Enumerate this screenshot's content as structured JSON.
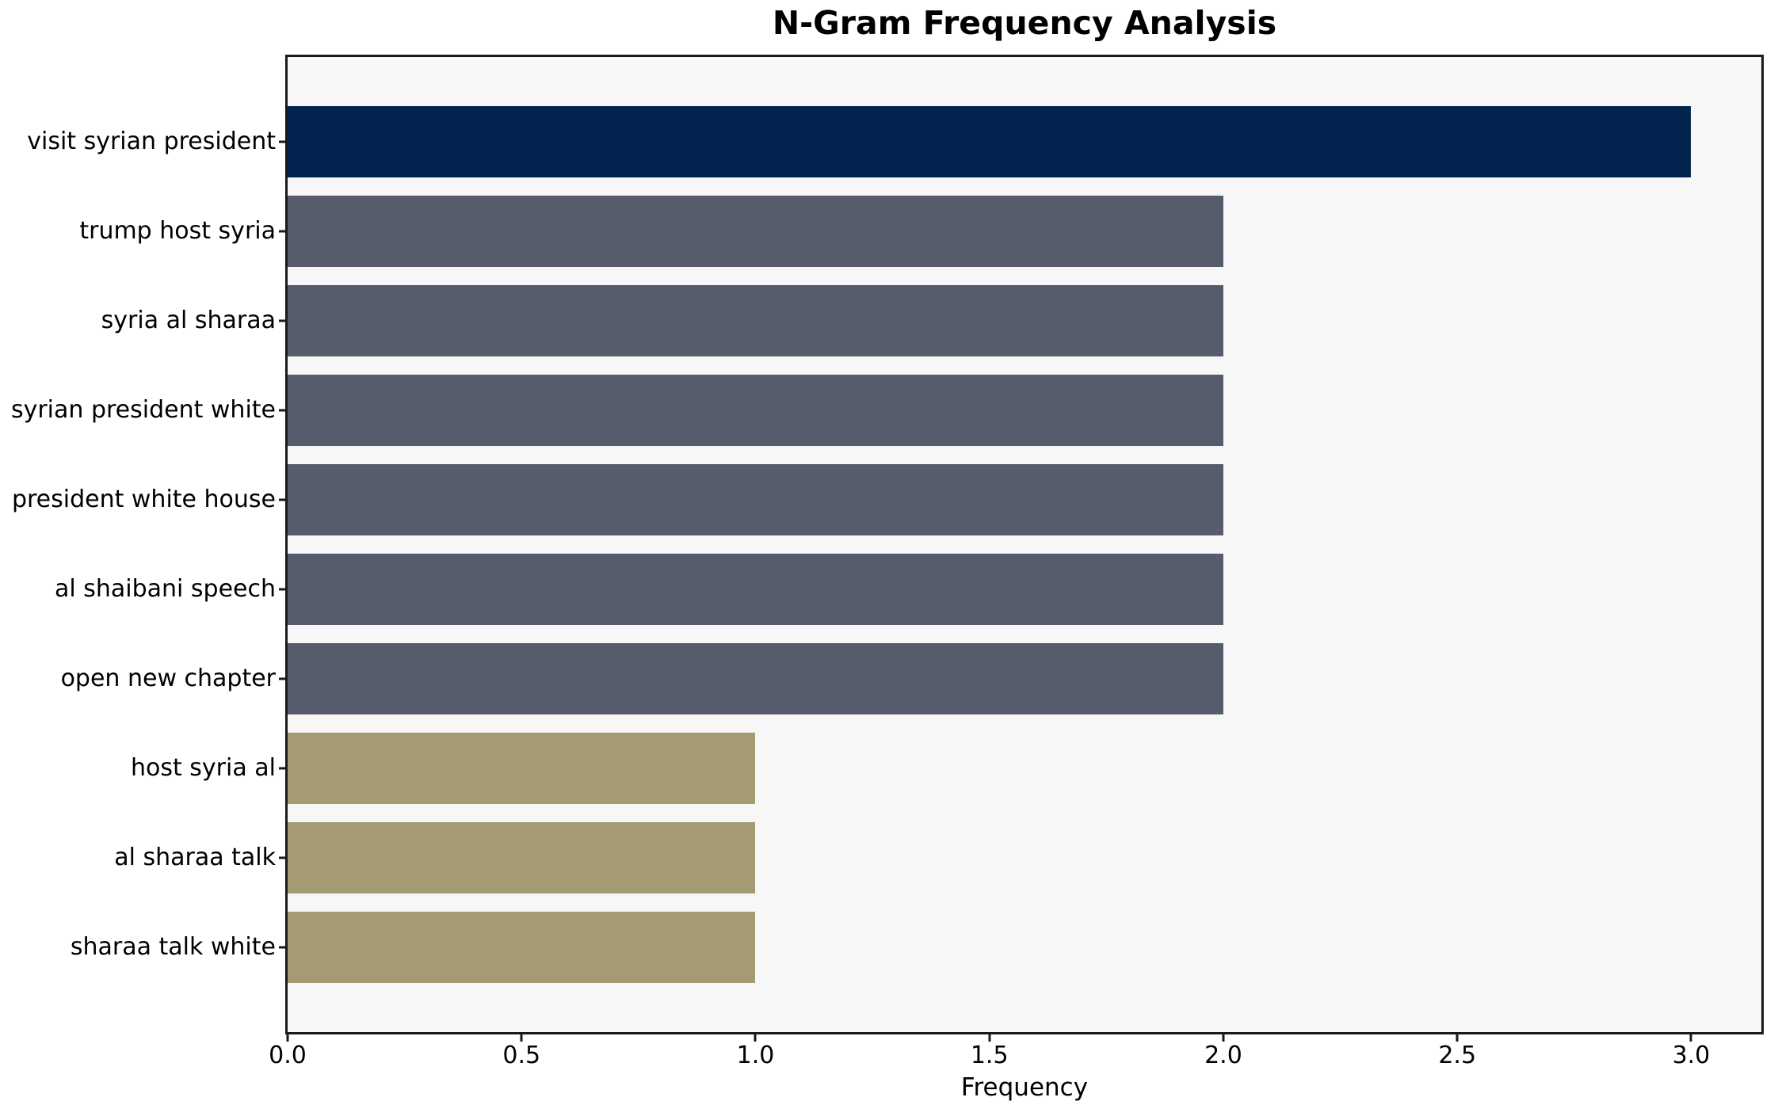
{
  "chart_data": {
    "type": "bar",
    "orientation": "horizontal",
    "title": "N-Gram Frequency Analysis",
    "xlabel": "Frequency",
    "ylabel": "",
    "categories": [
      "visit syrian president",
      "trump host syria",
      "syria al sharaa",
      "syrian president white",
      "president white house",
      "al shaibani speech",
      "open new chapter",
      "host syria al",
      "al sharaa talk",
      "sharaa talk white"
    ],
    "values": [
      3,
      2,
      2,
      2,
      2,
      2,
      2,
      1,
      1,
      1
    ],
    "xlim": [
      0,
      3.15
    ],
    "x_ticks": [
      0.0,
      0.5,
      1.0,
      1.5,
      2.0,
      2.5,
      3.0
    ],
    "x_tick_labels": [
      "0.0",
      "0.5",
      "1.0",
      "1.5",
      "2.0",
      "2.5",
      "3.0"
    ],
    "grid": false,
    "legend": "none",
    "colors": {
      "bars": [
        "#02234e",
        "#565c6b",
        "#565c6b",
        "#565c6b",
        "#565c6b",
        "#565c6b",
        "#565c6b",
        "#a49b72",
        "#a49b72",
        "#a49b72"
      ],
      "plot_background": "#f7f7f8",
      "figure_background": "#ffffff",
      "spine": "#1a1a1a",
      "text": "#000000"
    }
  }
}
